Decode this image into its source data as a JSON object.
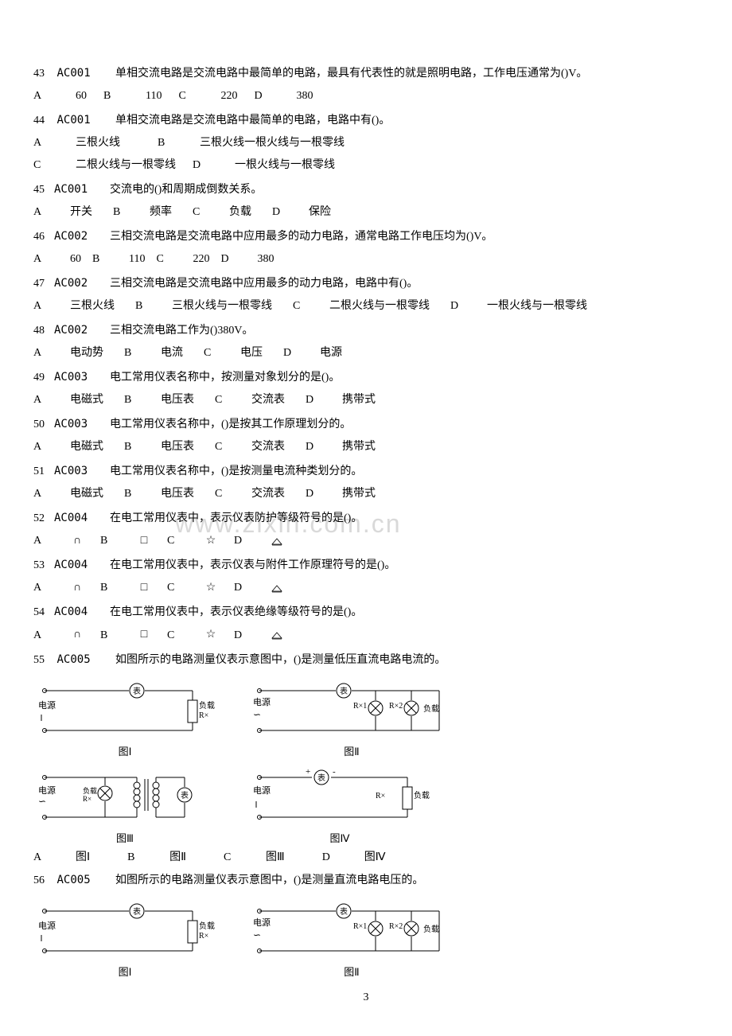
{
  "watermark": "www.zixin.com.cn",
  "pageNumber": "3",
  "questions": [
    {
      "num": "43",
      "code": "AC001",
      "text": "单相交流电路是交流电路中最简单的电路，最具有代表性的就是照明电路，工作电压通常为()V。",
      "opts": [
        {
          "l": "A",
          "t": "60"
        },
        {
          "l": "B",
          "t": "110"
        },
        {
          "l": "C",
          "t": "220"
        },
        {
          "l": "D",
          "t": "380"
        }
      ],
      "layout": "tight"
    },
    {
      "num": "44",
      "code": "AC001",
      "text": "单相交流电路是交流电路中最简单的电路，电路中有()。",
      "optsLine1": [
        {
          "l": "A",
          "t": "三根火线"
        },
        {
          "l": "B",
          "t": "三根火线一根火线与一根零线"
        }
      ],
      "optsLine2": [
        {
          "l": "C",
          "t": "二根火线与一根零线"
        },
        {
          "l": "D",
          "t": "一根火线与一根零线"
        }
      ]
    },
    {
      "num": "45",
      "code": "AC001",
      "text": "交流电的()和周期成倒数关系。",
      "opts": [
        {
          "l": "A",
          "t": "开关"
        },
        {
          "l": "B",
          "t": "频率"
        },
        {
          "l": "C",
          "t": "负载"
        },
        {
          "l": "D",
          "t": "保险"
        }
      ],
      "layout": "wide"
    },
    {
      "num": "46",
      "code": "AC002",
      "text": "三相交流电路是交流电路中应用最多的动力电路，通常电路工作电压均为()V。",
      "opts": [
        {
          "l": "A",
          "t": "60"
        },
        {
          "l": "B",
          "t": "110"
        },
        {
          "l": "C",
          "t": "220"
        },
        {
          "l": "D",
          "t": "380"
        }
      ],
      "layout": "tight"
    },
    {
      "num": "47",
      "code": "AC002",
      "text": "三相交流电路是交流电路中应用最多的动力电路，电路中有()。",
      "opts": [
        {
          "l": "A",
          "t": "三根火线"
        },
        {
          "l": "B",
          "t": "三根火线与一根零线"
        },
        {
          "l": "C",
          "t": "二根火线与一根零线"
        },
        {
          "l": "D",
          "t": "一根火线与一根零线"
        }
      ],
      "layout": "wide"
    },
    {
      "num": "48",
      "code": "AC002",
      "text": "三相交流电路工作为()380V。",
      "opts": [
        {
          "l": "A",
          "t": "电动势"
        },
        {
          "l": "B",
          "t": "电流"
        },
        {
          "l": "C",
          "t": "电压"
        },
        {
          "l": "D",
          "t": "电源"
        }
      ],
      "layout": "wide"
    },
    {
      "num": "49",
      "code": "AC003",
      "text": "电工常用仪表名称中，按测量对象划分的是()。",
      "opts": [
        {
          "l": "A",
          "t": "电磁式"
        },
        {
          "l": "B",
          "t": "电压表"
        },
        {
          "l": "C",
          "t": "交流表"
        },
        {
          "l": "D",
          "t": "携带式"
        }
      ],
      "layout": "wide"
    },
    {
      "num": "50",
      "code": "AC003",
      "text": "电工常用仪表名称中，()是按其工作原理划分的。",
      "opts": [
        {
          "l": "A",
          "t": "电磁式"
        },
        {
          "l": "B",
          "t": "电压表"
        },
        {
          "l": "C",
          "t": "交流表"
        },
        {
          "l": "D",
          "t": "携带式"
        }
      ],
      "layout": "wide"
    },
    {
      "num": "51",
      "code": "AC003",
      "text": "电工常用仪表名称中，()是按测量电流种类划分的。",
      "opts": [
        {
          "l": "A",
          "t": "电磁式"
        },
        {
          "l": "B",
          "t": "电压表"
        },
        {
          "l": "C",
          "t": "交流表"
        },
        {
          "l": "D",
          "t": "携带式"
        }
      ],
      "layout": "wide"
    },
    {
      "num": "52",
      "code": "AC004",
      "text": "在电工常用仪表中，表示仪表防护等级符号的是()。",
      "opts": [
        {
          "l": "A",
          "sym": "cap"
        },
        {
          "l": "B",
          "sym": "square"
        },
        {
          "l": "C",
          "sym": "star"
        },
        {
          "l": "D",
          "sym": "triangle"
        }
      ],
      "layout": "sym"
    },
    {
      "num": "53",
      "code": "AC004",
      "text": "在电工常用仪表中，表示仪表与附件工作原理符号的是()。",
      "opts": [
        {
          "l": "A",
          "sym": "cap"
        },
        {
          "l": "B",
          "sym": "square"
        },
        {
          "l": "C",
          "sym": "star"
        },
        {
          "l": "D",
          "sym": "triangle"
        }
      ],
      "layout": "sym"
    },
    {
      "num": "54",
      "code": "AC004",
      "text": "在电工常用仪表中，表示仪表绝缘等级符号的是()。",
      "opts": [
        {
          "l": "A",
          "sym": "cap"
        },
        {
          "l": "B",
          "sym": "square"
        },
        {
          "l": "C",
          "sym": "star"
        },
        {
          "l": "D",
          "sym": "triangle"
        }
      ],
      "layout": "sym"
    },
    {
      "num": "55",
      "code": "AC005",
      "text": "如图所示的电路测量仪表示意图中，()是测量低压直流电路电流的。",
      "diagrams1": true,
      "opts": [
        {
          "l": "A",
          "t": "图Ⅰ"
        },
        {
          "l": "B",
          "t": "图Ⅱ"
        },
        {
          "l": "C",
          "t": "图Ⅲ"
        },
        {
          "l": "D",
          "t": "图Ⅳ"
        }
      ],
      "layout": "wide"
    },
    {
      "num": "56",
      "code": "AC005",
      "text": "如图所示的电路测量仪表示意图中，()是测量直流电路电压的。",
      "diagrams2": true
    }
  ],
  "figLabels": {
    "f1": "图Ⅰ",
    "f2": "图Ⅱ",
    "f3": "图Ⅲ",
    "f4": "图Ⅳ"
  },
  "diagLabels": {
    "dianyuan": "电源",
    "fuzai": "负载",
    "Rx": "R×",
    "Rx1": "R×1",
    "Rx2": "R×2",
    "meter": "表",
    "plus": "+",
    "minus": "-"
  },
  "style": {
    "stroke": "#000000",
    "strokeWidth": 1,
    "svgWidth": 230,
    "svgHeight": 90,
    "textColor": "#000000",
    "fontSize": 11
  }
}
